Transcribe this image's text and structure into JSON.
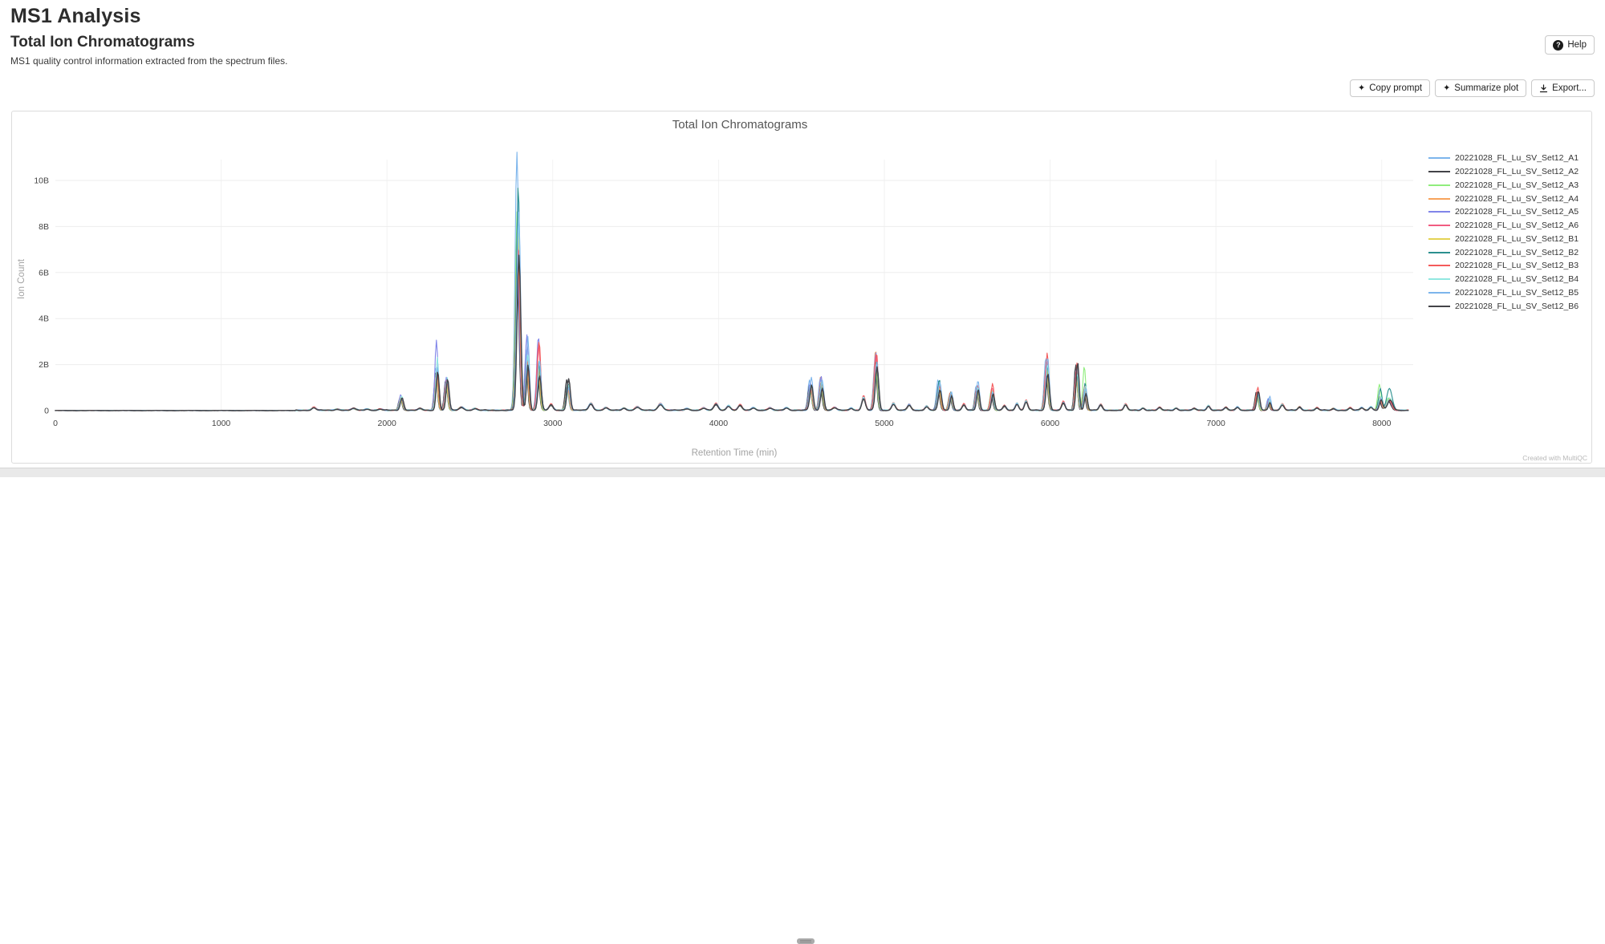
{
  "page": {
    "title": "MS1 Analysis",
    "section_title": "Total Ion Chromatograms",
    "description": "MS1 quality control information extracted from the spectrum files.",
    "help_label": "Help",
    "toolbar": {
      "copy_prompt_label": "Copy prompt",
      "summarize_label": "Summarize plot",
      "export_label": "Export..."
    },
    "watermark": "Created with MultiQC"
  },
  "chart_data": {
    "type": "line",
    "title": "Total Ion Chromatograms",
    "xlabel": "Retention Time (min)",
    "ylabel": "Ion Count",
    "xlim": [
      0,
      8190
    ],
    "ylim_billions": [
      0,
      11.5
    ],
    "units_note": "y values are ion counts in billions (B); series traces are parameterized as gaussian peaks [rt_min, intensity_B, sigma_min] read off the plot",
    "grid": true,
    "legend_position": "right",
    "x_ticks": [
      0,
      1000,
      2000,
      3000,
      4000,
      5000,
      6000,
      7000,
      8000
    ],
    "y_ticks": [
      [
        0,
        "0"
      ],
      [
        2,
        "2B"
      ],
      [
        4,
        "4B"
      ],
      [
        6,
        "6B"
      ],
      [
        8,
        "8B"
      ],
      [
        10,
        "10B"
      ]
    ],
    "baseline_bumps": [
      [
        1560,
        0.12,
        12
      ],
      [
        1700,
        0.05,
        14
      ],
      [
        1800,
        0.08,
        14
      ],
      [
        1880,
        0.06,
        12
      ],
      [
        1960,
        0.05,
        12
      ],
      [
        2200,
        0.08,
        12
      ],
      [
        2450,
        0.14,
        14
      ],
      [
        2530,
        0.08,
        12
      ],
      [
        2990,
        0.25,
        12
      ],
      [
        3230,
        0.3,
        13
      ],
      [
        3320,
        0.12,
        12
      ],
      [
        3430,
        0.1,
        12
      ],
      [
        3510,
        0.15,
        13
      ],
      [
        3650,
        0.28,
        15
      ],
      [
        3810,
        0.08,
        13
      ],
      [
        3910,
        0.1,
        12
      ],
      [
        3985,
        0.28,
        13
      ],
      [
        4060,
        0.2,
        12
      ],
      [
        4130,
        0.22,
        12
      ],
      [
        4210,
        0.12,
        12
      ],
      [
        4310,
        0.1,
        12
      ],
      [
        4410,
        0.12,
        12
      ],
      [
        4700,
        0.12,
        12
      ],
      [
        4800,
        0.1,
        10
      ],
      [
        4875,
        0.55,
        11
      ],
      [
        5055,
        0.3,
        11
      ],
      [
        5150,
        0.25,
        11
      ],
      [
        5255,
        0.18,
        10
      ],
      [
        5480,
        0.25,
        10
      ],
      [
        5725,
        0.2,
        10
      ],
      [
        5800,
        0.3,
        10
      ],
      [
        5855,
        0.4,
        10
      ],
      [
        6080,
        0.35,
        10
      ],
      [
        6305,
        0.25,
        10
      ],
      [
        6455,
        0.25,
        10
      ],
      [
        6560,
        0.1,
        10
      ],
      [
        6660,
        0.12,
        10
      ],
      [
        6760,
        0.1,
        10
      ],
      [
        6870,
        0.08,
        10
      ],
      [
        6955,
        0.2,
        10
      ],
      [
        7060,
        0.12,
        10
      ],
      [
        7130,
        0.15,
        10
      ],
      [
        7400,
        0.25,
        11
      ],
      [
        7505,
        0.15,
        10
      ],
      [
        7610,
        0.1,
        10
      ],
      [
        7710,
        0.08,
        10
      ],
      [
        7810,
        0.1,
        10
      ],
      [
        7880,
        0.12,
        10
      ],
      [
        7935,
        0.15,
        10
      ]
    ],
    "shared_peaks": [
      [
        2085,
        10,
        0.55
      ],
      [
        2300,
        9,
        1.7
      ],
      [
        2360,
        9,
        1.3
      ],
      [
        2790,
        11,
        8.0
      ],
      [
        2845,
        9,
        2.2
      ],
      [
        2915,
        10,
        2.0
      ],
      [
        3090,
        10,
        1.1
      ],
      [
        4555,
        10,
        1.1
      ],
      [
        4620,
        10,
        1.2
      ],
      [
        4950,
        10,
        2.1
      ],
      [
        5330,
        10,
        1.1
      ],
      [
        5400,
        9,
        0.8
      ],
      [
        5560,
        9,
        1.0
      ],
      [
        5650,
        9,
        0.9
      ],
      [
        5980,
        10,
        2.0
      ],
      [
        6160,
        9,
        1.8
      ],
      [
        6210,
        9,
        1.2
      ],
      [
        7250,
        9,
        0.8
      ],
      [
        7320,
        8,
        0.5
      ],
      [
        7990,
        10,
        0.6
      ],
      [
        8045,
        16,
        0.5
      ]
    ],
    "series": [
      {
        "name": "20221028_FL_Lu_SV_Set12_A1",
        "color": "#7cb5ec",
        "baseline_scale": 1.0,
        "peak_scales": [
          1.0,
          1.1,
          1.0,
          1.4,
          1.2,
          1.0,
          0.9,
          1.2,
          1.2,
          1.05,
          1.2,
          0.9,
          1.1,
          0.8,
          1.15,
          1.05,
          0.7,
          0.8,
          1.0,
          0.9,
          0.9
        ]
      },
      {
        "name": "20221028_FL_Lu_SV_Set12_A2",
        "color": "#434348",
        "baseline_scale": 0.9,
        "peak_scales": [
          0.95,
          1.0,
          1.0,
          0.82,
          0.9,
          0.75,
          1.2,
          1.0,
          0.8,
          0.9,
          0.8,
          0.8,
          0.9,
          0.7,
          0.8,
          1.1,
          0.6,
          1.0,
          0.7,
          0.7,
          0.8
        ]
      },
      {
        "name": "20221028_FL_Lu_SV_Set12_A3",
        "color": "#90ed7d",
        "baseline_scale": 1.0,
        "peak_scales": [
          0.9,
          0.9,
          0.9,
          1.1,
          1.0,
          0.9,
          0.8,
          0.9,
          1.0,
          1.0,
          1.0,
          0.9,
          0.9,
          1.0,
          0.9,
          0.8,
          1.6,
          0.7,
          0.8,
          1.9,
          1.1
        ]
      },
      {
        "name": "20221028_FL_Lu_SV_Set12_A4",
        "color": "#f7a35c",
        "baseline_scale": 1.05,
        "peak_scales": [
          1.0,
          0.95,
          1.0,
          0.94,
          1.0,
          1.0,
          0.9,
          1.0,
          1.25,
          1.25,
          0.9,
          1.0,
          1.0,
          0.9,
          1.0,
          0.9,
          0.8,
          0.9,
          0.9,
          1.0,
          0.9
        ]
      },
      {
        "name": "20221028_FL_Lu_SV_Set12_A5",
        "color": "#8085e9",
        "baseline_scale": 1.1,
        "peak_scales": [
          1.25,
          1.8,
          1.1,
          0.75,
          1.5,
          1.6,
          0.9,
          1.1,
          1.25,
          1.2,
          1.1,
          0.9,
          1.0,
          0.8,
          1.05,
          1.0,
          0.8,
          0.8,
          1.1,
          0.9,
          0.9
        ]
      },
      {
        "name": "20221028_FL_Lu_SV_Set12_A6",
        "color": "#f15c80",
        "baseline_scale": 1.0,
        "peak_scales": [
          1.0,
          1.0,
          1.0,
          0.88,
          1.0,
          1.45,
          0.9,
          0.9,
          1.0,
          1.15,
          1.0,
          1.0,
          1.0,
          1.1,
          1.1,
          1.0,
          0.9,
          0.9,
          0.9,
          0.8,
          0.9
        ]
      },
      {
        "name": "20221028_FL_Lu_SV_Set12_B1",
        "color": "#e4d354",
        "baseline_scale": 0.95,
        "peak_scales": [
          1.0,
          0.95,
          0.9,
          0.98,
          1.0,
          1.0,
          0.9,
          1.0,
          1.0,
          1.0,
          0.9,
          0.9,
          0.9,
          0.9,
          0.9,
          0.9,
          0.8,
          0.8,
          0.8,
          1.0,
          1.0
        ]
      },
      {
        "name": "20221028_FL_Lu_SV_Set12_B2",
        "color": "#2b908f",
        "baseline_scale": 1.0,
        "peak_scales": [
          1.0,
          1.05,
          1.0,
          1.22,
          1.1,
          1.0,
          1.1,
          1.0,
          1.0,
          1.0,
          1.2,
          1.0,
          1.0,
          0.9,
          1.0,
          0.9,
          1.0,
          0.9,
          0.9,
          1.6,
          1.9
        ]
      },
      {
        "name": "20221028_FL_Lu_SV_Set12_B3",
        "color": "#f45b5b",
        "baseline_scale": 1.15,
        "peak_scales": [
          1.05,
          1.0,
          1.0,
          0.9,
          1.0,
          1.5,
          0.9,
          1.0,
          1.0,
          1.2,
          1.0,
          1.0,
          1.1,
          1.3,
          1.25,
          1.15,
          0.9,
          1.25,
          0.9,
          0.9,
          0.8
        ]
      },
      {
        "name": "20221028_FL_Lu_SV_Set12_B4",
        "color": "#91e8e1",
        "baseline_scale": 1.05,
        "peak_scales": [
          1.1,
          1.35,
          1.1,
          1.02,
          1.1,
          1.1,
          1.0,
          1.0,
          1.0,
          1.0,
          1.1,
          1.0,
          1.0,
          0.9,
          1.0,
          0.9,
          0.9,
          0.9,
          0.9,
          1.0,
          1.1
        ]
      },
      {
        "name": "20221028_FL_Lu_SV_Set12_B5",
        "color": "#7cb5ec",
        "baseline_scale": 1.0,
        "peak_scales": [
          1.0,
          1.1,
          1.0,
          1.08,
          1.45,
          1.1,
          0.9,
          1.3,
          1.1,
          1.0,
          1.1,
          1.0,
          1.3,
          0.9,
          1.15,
          1.05,
          0.8,
          0.9,
          1.2,
          0.9,
          0.9
        ]
      },
      {
        "name": "20221028_FL_Lu_SV_Set12_B6",
        "color": "#434348",
        "baseline_scale": 0.9,
        "peak_scales": [
          1.0,
          1.0,
          1.05,
          0.84,
          0.9,
          0.75,
          1.25,
          1.0,
          0.8,
          0.9,
          0.8,
          0.8,
          0.9,
          0.8,
          0.8,
          1.15,
          0.6,
          1.0,
          0.7,
          0.75,
          0.85
        ]
      }
    ]
  }
}
